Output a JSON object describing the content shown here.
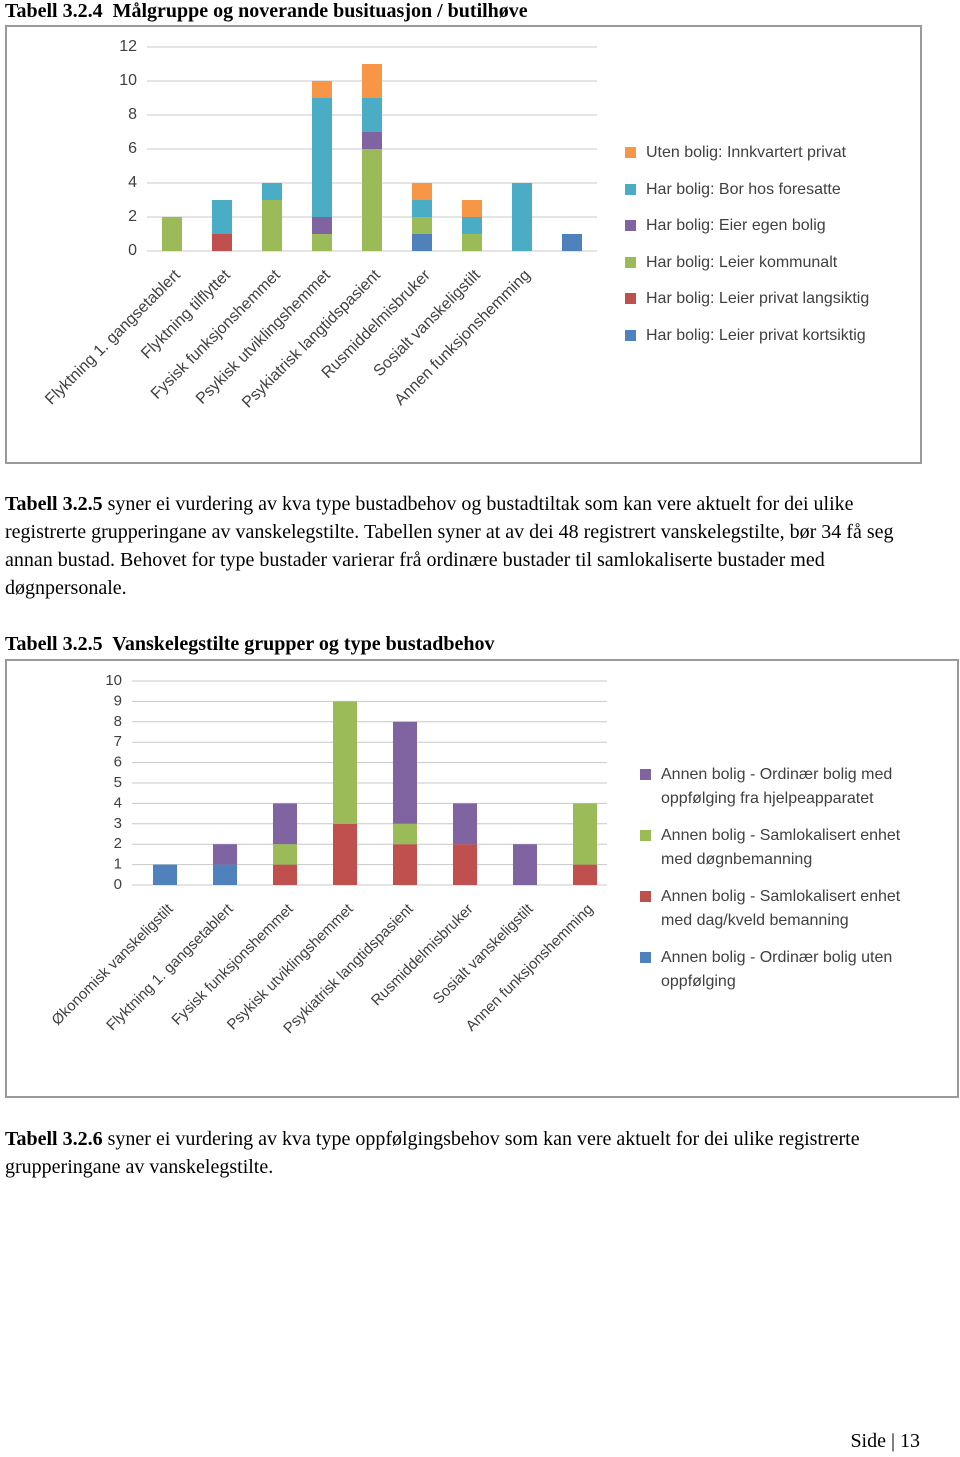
{
  "heading_1": "Tabell 3.2.4  Målgruppe og noverande busituasjon / butilhøve",
  "paragraph_1": {
    "lead": "Tabell 3.2.5",
    "text": "syner ei vurdering av kva type bustadbehov og bustadtiltak som kan vere aktuelt for dei ulike registrerte grupperingane av vanskelegstilte.  Tabellen syner at av dei 48 registrert vanskelegstilte, bør 34 få seg annan bustad.  Behovet for type bustader varierar frå ordinære bustader til samlokaliserte bustader med døgnpersonale."
  },
  "heading_2": "Tabell 3.2.5  Vanskelegstilte grupper og type bustadbehov",
  "paragraph_2": {
    "lead": "Tabell 3.2.6",
    "text": "syner ei vurdering av kva type oppfølgingsbehov som kan vere aktuelt for dei ulike registrerte grupperingane av vanskelegstilte."
  },
  "footer": "Side | 13",
  "chart_data": [
    {
      "type": "bar",
      "stacked": true,
      "grid": true,
      "categories": [
        "Flyktning 1. gangsetablert",
        "Flyktning tilflyttet",
        "Fysisk funksjonshemmet",
        "Psykisk utviklingshemmet",
        "Psykiatrisk langtidspasient",
        "Rusmiddelmisbruker",
        "Sosialt vanskeligstilt",
        "Annen funksjonshemming",
        null
      ],
      "series": [
        {
          "name": "Har bolig: Leier privat kortsiktig",
          "color": "#4f81bd",
          "values": [
            0,
            0,
            0,
            0,
            0,
            1,
            0,
            0,
            1
          ]
        },
        {
          "name": "Har bolig: Leier privat langsiktig",
          "color": "#c0504d",
          "values": [
            0,
            1,
            0,
            0,
            0,
            0,
            0,
            0,
            0
          ]
        },
        {
          "name": "Har bolig: Leier kommunalt",
          "color": "#9bbb59",
          "values": [
            2,
            0,
            3,
            1,
            6,
            1,
            1,
            0,
            0
          ]
        },
        {
          "name": "Har bolig: Eier egen bolig",
          "color": "#8064a2",
          "values": [
            0,
            0,
            0,
            1,
            1,
            0,
            0,
            0,
            0
          ]
        },
        {
          "name": "Har bolig: Bor hos foresatte",
          "color": "#4bacc6",
          "values": [
            0,
            2,
            1,
            7,
            2,
            1,
            1,
            4,
            0
          ]
        },
        {
          "name": "Uten bolig: Innkvartert privat",
          "color": "#f79646",
          "values": [
            0,
            0,
            0,
            1,
            2,
            1,
            1,
            0,
            0
          ]
        }
      ],
      "ylim": [
        0,
        12
      ],
      "yticks": [
        0,
        2,
        4,
        6,
        8,
        10,
        12
      ]
    },
    {
      "type": "bar",
      "stacked": true,
      "grid": true,
      "categories": [
        "Økonomisk vanskeligstilt",
        "Flyktning 1. gangsetablert",
        "Fysisk funksjonshemmet",
        "Psykisk utviklingshemmet",
        "Psykiatrisk langtidspasient",
        "Rusmiddelmisbruker",
        "Sosialt vanskeligstilt",
        "Annen funksjonshemming"
      ],
      "series": [
        {
          "name": "Annen bolig - Ordinær bolig uten oppfølging",
          "color": "#4f81bd",
          "values": [
            1,
            1,
            0,
            0,
            0,
            0,
            0,
            0
          ]
        },
        {
          "name": "Annen bolig - Samlokalisert enhet med dag/kveld bemanning",
          "color": "#c0504d",
          "values": [
            0,
            0,
            1,
            3,
            2,
            2,
            0,
            1
          ]
        },
        {
          "name": "Annen bolig - Samlokalisert enhet med døgnbemanning",
          "color": "#9bbb59",
          "values": [
            0,
            0,
            1,
            6,
            1,
            0,
            0,
            3
          ]
        },
        {
          "name": "Annen bolig - Ordinær bolig med oppfølging fra hjelpeapparatet",
          "color": "#8064a2",
          "values": [
            0,
            1,
            2,
            0,
            5,
            2,
            2,
            0
          ]
        }
      ],
      "ylim": [
        0,
        10
      ],
      "yticks": [
        0,
        1,
        2,
        3,
        4,
        5,
        6,
        7,
        8,
        9,
        10
      ]
    }
  ]
}
